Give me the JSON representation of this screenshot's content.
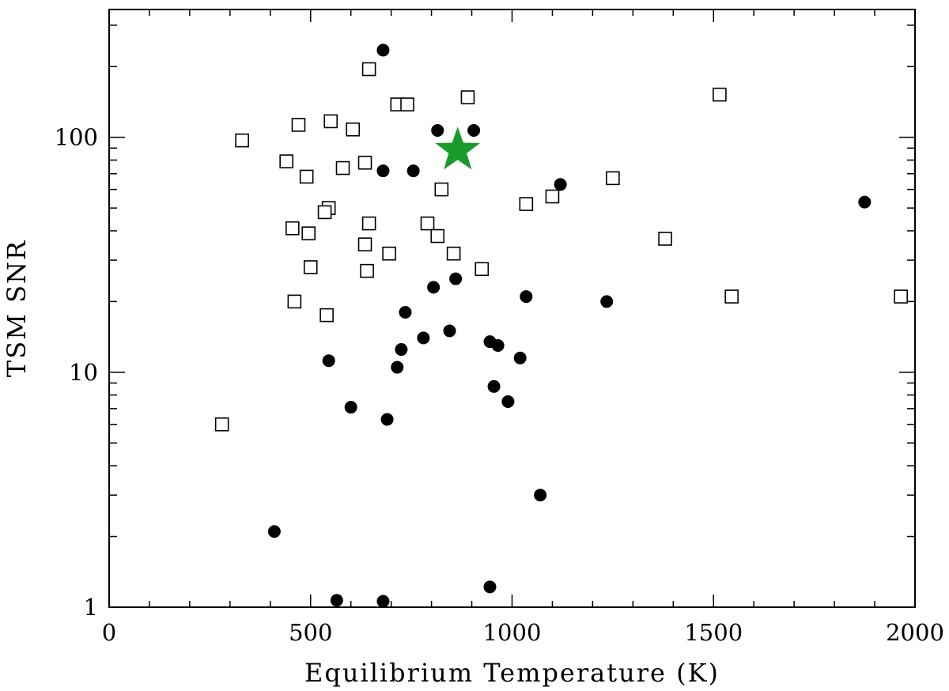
{
  "chart_data": {
    "type": "scatter",
    "xlabel": "Equilibrium Temperature (K)",
    "ylabel": "TSM SNR",
    "xlim": [
      0,
      2000
    ],
    "ylim": [
      1,
      350
    ],
    "yscale": "log",
    "grid": false,
    "x_ticks": [
      0,
      500,
      1000,
      1500,
      2000
    ],
    "x_tick_labels": [
      "0",
      "500",
      "1000",
      "1500",
      "2000"
    ],
    "y_ticks": [
      1,
      10,
      100
    ],
    "y_tick_labels": [
      "1",
      "10",
      "100"
    ],
    "series": [
      {
        "marker": "filled-circle",
        "color": "#000000",
        "points": [
          [
            680,
            235
          ],
          [
            815,
            107
          ],
          [
            905,
            107
          ],
          [
            680,
            72
          ],
          [
            755,
            72
          ],
          [
            1120,
            63
          ],
          [
            1875,
            53
          ],
          [
            860,
            25
          ],
          [
            805,
            23
          ],
          [
            1035,
            21
          ],
          [
            1235,
            20
          ],
          [
            735,
            18
          ],
          [
            845,
            15
          ],
          [
            780,
            14
          ],
          [
            945,
            13.5
          ],
          [
            965,
            13
          ],
          [
            725,
            12.5
          ],
          [
            1020,
            11.5
          ],
          [
            545,
            11.2
          ],
          [
            715,
            10.5
          ],
          [
            955,
            8.7
          ],
          [
            990,
            7.5
          ],
          [
            600,
            7.1
          ],
          [
            690,
            6.3
          ],
          [
            1070,
            3
          ],
          [
            410,
            2.1
          ],
          [
            565,
            1.07
          ],
          [
            680,
            1.06
          ],
          [
            945,
            1.22
          ]
        ]
      },
      {
        "marker": "open-square",
        "color": "#000000",
        "points": [
          [
            645,
            195
          ],
          [
            1515,
            152
          ],
          [
            890,
            148
          ],
          [
            715,
            138
          ],
          [
            740,
            138
          ],
          [
            550,
            117
          ],
          [
            470,
            113
          ],
          [
            605,
            108
          ],
          [
            330,
            97
          ],
          [
            440,
            79
          ],
          [
            635,
            78
          ],
          [
            580,
            74
          ],
          [
            490,
            68
          ],
          [
            1250,
            67
          ],
          [
            825,
            60
          ],
          [
            1100,
            56
          ],
          [
            1035,
            52
          ],
          [
            545,
            50
          ],
          [
            535,
            48
          ],
          [
            645,
            43
          ],
          [
            790,
            43
          ],
          [
            455,
            41
          ],
          [
            495,
            39
          ],
          [
            815,
            38
          ],
          [
            1380,
            37
          ],
          [
            635,
            35
          ],
          [
            695,
            32
          ],
          [
            855,
            32
          ],
          [
            500,
            28
          ],
          [
            925,
            27.5
          ],
          [
            640,
            27
          ],
          [
            460,
            20
          ],
          [
            1545,
            21
          ],
          [
            1965,
            21
          ],
          [
            540,
            17.5
          ],
          [
            280,
            6
          ]
        ]
      },
      {
        "marker": "star",
        "color": "#1a9a2a",
        "points": [
          [
            865,
            88
          ]
        ]
      }
    ]
  }
}
